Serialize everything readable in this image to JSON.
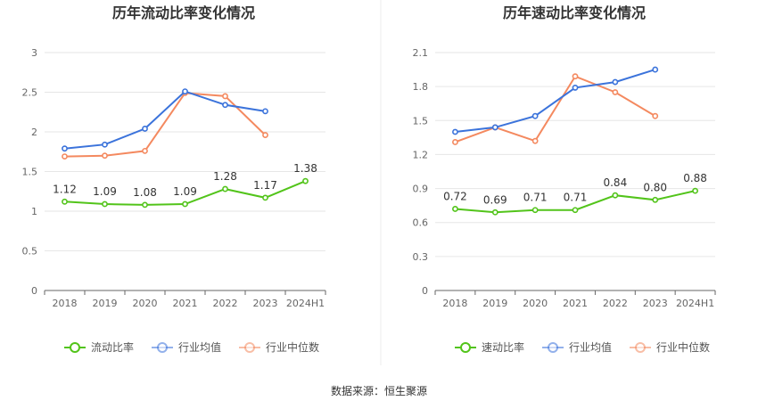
{
  "source_text": "数据来源：恒生聚源",
  "colors": {
    "company": "#52c41a",
    "industry_avg": "#3b73db",
    "industry_median": "#f4895f",
    "grid": "#e6e6e6",
    "axis": "#666666"
  },
  "legend_items": [
    "行业均值",
    "行业中位数"
  ],
  "chart_data": [
    {
      "type": "line",
      "title": "历年流动比率变化情况",
      "categories": [
        "2018",
        "2019",
        "2020",
        "2021",
        "2022",
        "2023",
        "2024H1"
      ],
      "ylim": [
        0,
        3
      ],
      "yticks": [
        "0",
        "0.5",
        "1",
        "1.5",
        "2",
        "2.5",
        "3"
      ],
      "grid": true,
      "legend_position": "bottom",
      "series": [
        {
          "name": "流动比率",
          "key": "company",
          "values": [
            1.12,
            1.09,
            1.08,
            1.09,
            1.28,
            1.17,
            1.38
          ],
          "labels": [
            "1.12",
            "1.09",
            "1.08",
            "1.09",
            "1.28",
            "1.17",
            "1.38"
          ]
        },
        {
          "name": "行业均值",
          "key": "industry_avg",
          "values": [
            1.79,
            1.84,
            2.04,
            2.51,
            2.34,
            2.26,
            null
          ]
        },
        {
          "name": "行业中位数",
          "key": "industry_median",
          "values": [
            1.69,
            1.7,
            1.76,
            2.49,
            2.45,
            1.96,
            null
          ]
        }
      ]
    },
    {
      "type": "line",
      "title": "历年速动比率变化情况",
      "categories": [
        "2018",
        "2019",
        "2020",
        "2021",
        "2022",
        "2023",
        "2024H1"
      ],
      "ylim": [
        0,
        2.1
      ],
      "yticks": [
        "0",
        "0.3",
        "0.6",
        "0.9",
        "1.2",
        "1.5",
        "1.8",
        "2.1"
      ],
      "grid": true,
      "legend_position": "bottom",
      "series": [
        {
          "name": "速动比率",
          "key": "company",
          "values": [
            0.72,
            0.69,
            0.71,
            0.71,
            0.84,
            0.8,
            0.88
          ],
          "labels": [
            "0.72",
            "0.69",
            "0.71",
            "0.71",
            "0.84",
            "0.80",
            "0.88"
          ]
        },
        {
          "name": "行业均值",
          "key": "industry_avg",
          "values": [
            1.4,
            1.44,
            1.54,
            1.79,
            1.84,
            1.95,
            null
          ]
        },
        {
          "name": "行业中位数",
          "key": "industry_median",
          "values": [
            1.31,
            1.44,
            1.32,
            1.89,
            1.75,
            1.54,
            null
          ]
        }
      ]
    }
  ]
}
